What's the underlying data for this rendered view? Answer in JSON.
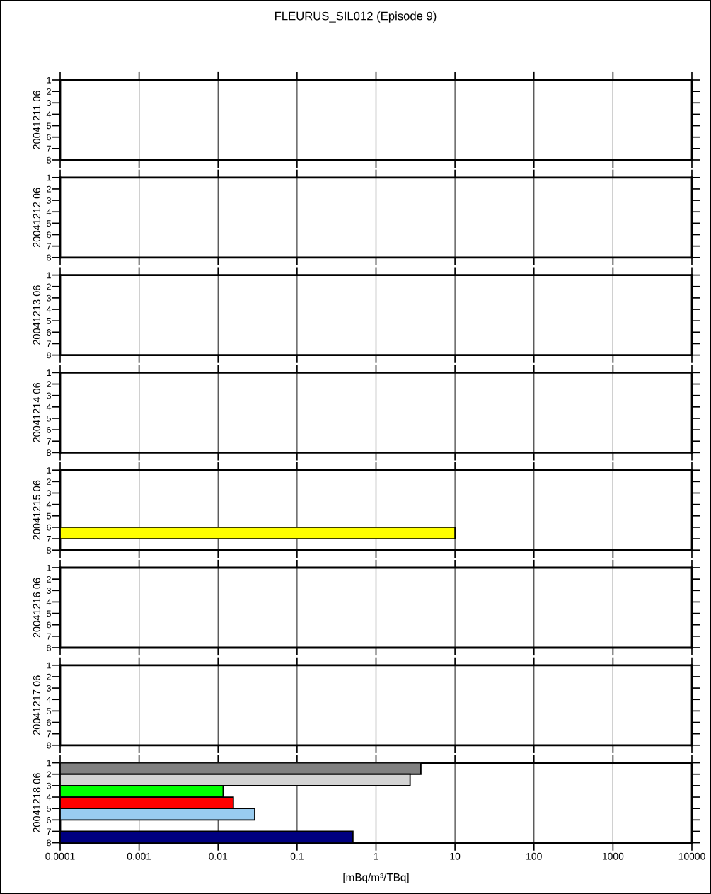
{
  "chart_data": [
    {
      "type": "bar",
      "orientation": "horizontal",
      "title": "FLEURUS_SIL012 (Episode 9)",
      "ylabel": "20041211 06",
      "log": "x",
      "xlim": [
        0.0001,
        10000
      ],
      "xticks": [
        0.0001,
        0.001,
        0.01,
        0.1,
        1,
        10,
        100,
        1000,
        10000
      ],
      "ylim": [
        8,
        1
      ],
      "yticks": [
        1,
        2,
        3,
        4,
        5,
        6,
        7,
        8
      ],
      "grid": "x",
      "tick_labels": "y"
    },
    {
      "type": "bar",
      "orientation": "horizontal",
      "ylabel": "20041212 06",
      "log": "x",
      "xlim": [
        0.0001,
        10000
      ],
      "xticks": [
        0.0001,
        0.001,
        0.01,
        0.1,
        1,
        10,
        100,
        1000,
        10000
      ],
      "ylim": [
        8,
        1
      ],
      "yticks": [
        1,
        2,
        3,
        4,
        5,
        6,
        7,
        8
      ],
      "grid": "x",
      "tick_labels": "y"
    },
    {
      "type": "bar",
      "orientation": "horizontal",
      "ylabel": "20041213 06",
      "log": "x",
      "xlim": [
        0.0001,
        10000
      ],
      "xticks": [
        0.0001,
        0.001,
        0.01,
        0.1,
        1,
        10,
        100,
        1000,
        10000
      ],
      "ylim": [
        8,
        1
      ],
      "yticks": [
        1,
        2,
        3,
        4,
        5,
        6,
        7,
        8
      ],
      "grid": "x",
      "tick_labels": "y"
    },
    {
      "type": "bar",
      "orientation": "horizontal",
      "ylabel": "20041214 06",
      "log": "x",
      "xlim": [
        0.0001,
        10000
      ],
      "xticks": [
        0.0001,
        0.001,
        0.01,
        0.1,
        1,
        10,
        100,
        1000,
        10000
      ],
      "ylim": [
        8,
        1
      ],
      "yticks": [
        1,
        2,
        3,
        4,
        5,
        6,
        7,
        8
      ],
      "grid": "x",
      "tick_labels": "y"
    },
    {
      "type": "bar",
      "orientation": "horizontal",
      "ylabel": "20041215 06",
      "x": [
        6.5
      ],
      "values": [
        10
      ],
      "colors": [
        "#ffff00"
      ],
      "log": "x",
      "xlim": [
        0.0001,
        10000
      ],
      "xticks": [
        0.0001,
        0.001,
        0.01,
        0.1,
        1,
        10,
        100,
        1000,
        10000
      ],
      "ylim": [
        8,
        1
      ],
      "yticks": [
        1,
        2,
        3,
        4,
        5,
        6,
        7,
        8
      ],
      "grid": "x",
      "tick_labels": "y"
    },
    {
      "type": "bar",
      "orientation": "horizontal",
      "ylabel": "20041216 06",
      "log": "x",
      "xlim": [
        0.0001,
        10000
      ],
      "xticks": [
        0.0001,
        0.001,
        0.01,
        0.1,
        1,
        10,
        100,
        1000,
        10000
      ],
      "ylim": [
        8,
        1
      ],
      "yticks": [
        1,
        2,
        3,
        4,
        5,
        6,
        7,
        8
      ],
      "grid": "x",
      "tick_labels": "y"
    },
    {
      "type": "bar",
      "orientation": "horizontal",
      "ylabel": "20041217 06",
      "log": "x",
      "xlim": [
        0.0001,
        10000
      ],
      "xticks": [
        0.0001,
        0.001,
        0.01,
        0.1,
        1,
        10,
        100,
        1000,
        10000
      ],
      "ylim": [
        8,
        1
      ],
      "yticks": [
        1,
        2,
        3,
        4,
        5,
        6,
        7,
        8
      ],
      "grid": "x",
      "tick_labels": "y"
    },
    {
      "type": "bar",
      "orientation": "horizontal",
      "ylabel": "20041218 06",
      "xlabel": "[mBq/m³/TBq]",
      "x": [
        1.5,
        2.5,
        3.5,
        4.5,
        5.5,
        7.5
      ],
      "values": [
        3.7,
        2.7,
        0.0115,
        0.0155,
        0.029,
        0.51
      ],
      "colors": [
        "#808080",
        "#d3d3d3",
        "#00ff00",
        "#ff0000",
        "#99ccf0",
        "#000080"
      ],
      "log": "x",
      "xlim": [
        0.0001,
        10000
      ],
      "xticks": [
        0.0001,
        0.001,
        0.01,
        0.1,
        1,
        10,
        100,
        1000,
        10000
      ],
      "ylim": [
        8,
        1
      ],
      "yticks": [
        1,
        2,
        3,
        4,
        5,
        6,
        7,
        8
      ],
      "grid": "x"
    }
  ]
}
